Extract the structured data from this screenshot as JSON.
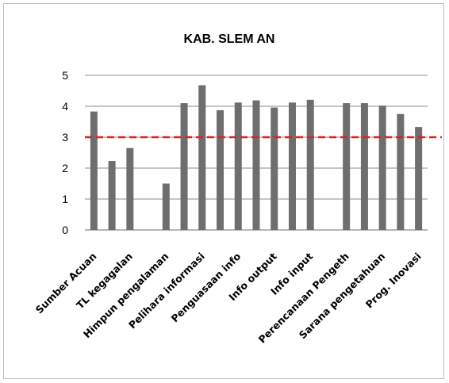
{
  "chart_data": {
    "type": "bar",
    "title": "KAB. SLEM AN",
    "xlabel": "",
    "ylabel": "",
    "ylim": [
      0,
      5
    ],
    "yticks": [
      0,
      1,
      2,
      3,
      4,
      5
    ],
    "grid": true,
    "legend": "none",
    "bar_color": "#6e6e6e",
    "grid_color": "#8c8c8c",
    "reference_line": {
      "value": 3,
      "color": "#e02020",
      "style": "dashed"
    },
    "categories": [
      "Sumber Acuan",
      "",
      "TL kegagalan",
      "",
      "Himpun pengalaman",
      "",
      "Pelihara informasi",
      "",
      "Penguasaan info",
      "",
      "Info output",
      "",
      "Info input",
      "",
      "Perencanaan Pengeth",
      "",
      "Sarana pengetahuan",
      "",
      "Prog. Inovasi"
    ],
    "values": [
      3.83,
      2.23,
      2.65,
      null,
      1.5,
      4.1,
      4.68,
      3.87,
      4.12,
      4.19,
      3.96,
      4.12,
      4.21,
      null,
      4.1,
      4.1,
      4.02,
      3.75,
      3.33
    ]
  }
}
